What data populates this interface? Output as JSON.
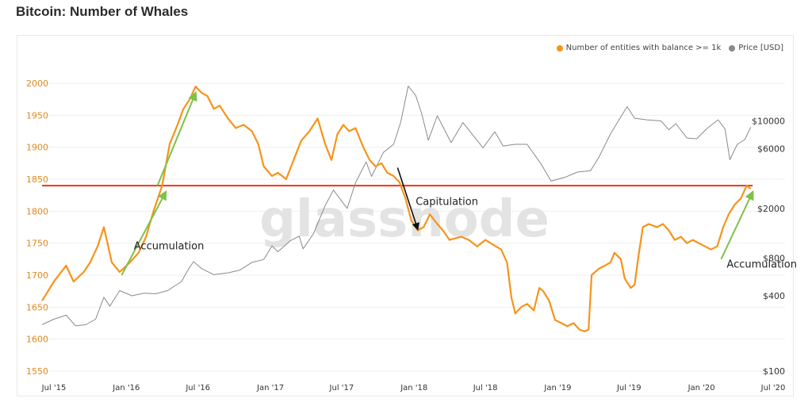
{
  "page": {
    "title": "Bitcoin: Number of Whales"
  },
  "chart_data": {
    "type": "line",
    "title": "Bitcoin: Number of Whales",
    "watermark": "glassnode",
    "legend_position": "top-right",
    "grid": true,
    "colors": {
      "whales": "#f7931a",
      "price": "#8a8a8a",
      "support_line": "#e8341c",
      "accumulation_arrow": "#7dc24b",
      "capitulation_arrow": "#111111"
    },
    "x_ticks": [
      "Jul '15",
      "Jan '16",
      "Jul '16",
      "Jan '17",
      "Jul '17",
      "Jan '18",
      "Jul '18",
      "Jan '19",
      "Jul '19",
      "Jan '20",
      "Jul '20"
    ],
    "y_left": {
      "ticks": [
        "2000",
        "1950",
        "1900",
        "1850",
        "1800",
        "1750",
        "1700",
        "1650",
        "1600",
        "1550"
      ],
      "range": [
        1550,
        2000
      ]
    },
    "y_right": {
      "scale": "log",
      "ticks": [
        "$10000",
        "$6000",
        "$2000",
        "$800",
        "$400",
        "$100"
      ],
      "range": [
        100,
        20000
      ]
    },
    "series": [
      {
        "name": "Number of entities with balance >= 1k",
        "axis": "left",
        "points": [
          [
            "2015-06-01",
            1660
          ],
          [
            "2015-07-01",
            1690
          ],
          [
            "2015-08-01",
            1715
          ],
          [
            "2015-08-20",
            1690
          ],
          [
            "2015-09-15",
            1705
          ],
          [
            "2015-10-01",
            1720
          ],
          [
            "2015-10-20",
            1745
          ],
          [
            "2015-11-05",
            1775
          ],
          [
            "2015-11-25",
            1720
          ],
          [
            "2015-12-15",
            1705
          ],
          [
            "2016-01-10",
            1720
          ],
          [
            "2016-02-01",
            1735
          ],
          [
            "2016-02-20",
            1760
          ],
          [
            "2016-03-10",
            1800
          ],
          [
            "2016-04-01",
            1840
          ],
          [
            "2016-04-20",
            1905
          ],
          [
            "2016-05-10",
            1935
          ],
          [
            "2016-05-25",
            1960
          ],
          [
            "2016-06-10",
            1975
          ],
          [
            "2016-06-25",
            1995
          ],
          [
            "2016-07-10",
            1985
          ],
          [
            "2016-07-25",
            1980
          ],
          [
            "2016-08-10",
            1960
          ],
          [
            "2016-08-25",
            1965
          ],
          [
            "2016-09-15",
            1945
          ],
          [
            "2016-10-05",
            1930
          ],
          [
            "2016-10-25",
            1935
          ],
          [
            "2016-11-15",
            1925
          ],
          [
            "2016-12-01",
            1905
          ],
          [
            "2016-12-15",
            1870
          ],
          [
            "2017-01-05",
            1855
          ],
          [
            "2017-01-20",
            1860
          ],
          [
            "2017-02-10",
            1850
          ],
          [
            "2017-03-01",
            1880
          ],
          [
            "2017-03-20",
            1910
          ],
          [
            "2017-04-10",
            1925
          ],
          [
            "2017-05-01",
            1945
          ],
          [
            "2017-05-20",
            1905
          ],
          [
            "2017-06-05",
            1880
          ],
          [
            "2017-06-20",
            1920
          ],
          [
            "2017-07-05",
            1935
          ],
          [
            "2017-07-20",
            1925
          ],
          [
            "2017-08-05",
            1930
          ],
          [
            "2017-08-25",
            1900
          ],
          [
            "2017-09-10",
            1880
          ],
          [
            "2017-09-25",
            1870
          ],
          [
            "2017-10-10",
            1875
          ],
          [
            "2017-10-25",
            1860
          ],
          [
            "2017-11-10",
            1855
          ],
          [
            "2017-11-25",
            1845
          ],
          [
            "2017-12-10",
            1820
          ],
          [
            "2017-12-25",
            1785
          ],
          [
            "2018-01-10",
            1770
          ],
          [
            "2018-01-25",
            1775
          ],
          [
            "2018-02-10",
            1795
          ],
          [
            "2018-03-01",
            1780
          ],
          [
            "2018-03-15",
            1770
          ],
          [
            "2018-04-01",
            1755
          ],
          [
            "2018-05-01",
            1760
          ],
          [
            "2018-05-20",
            1755
          ],
          [
            "2018-06-10",
            1745
          ],
          [
            "2018-07-01",
            1755
          ],
          [
            "2018-07-20",
            1748
          ],
          [
            "2018-08-10",
            1740
          ],
          [
            "2018-08-25",
            1720
          ],
          [
            "2018-09-05",
            1665
          ],
          [
            "2018-09-15",
            1640
          ],
          [
            "2018-09-30",
            1650
          ],
          [
            "2018-10-15",
            1655
          ],
          [
            "2018-11-01",
            1645
          ],
          [
            "2018-11-15",
            1680
          ],
          [
            "2018-11-25",
            1675
          ],
          [
            "2018-12-10",
            1660
          ],
          [
            "2018-12-25",
            1630
          ],
          [
            "2019-01-10",
            1625
          ],
          [
            "2019-01-25",
            1620
          ],
          [
            "2019-02-10",
            1625
          ],
          [
            "2019-02-25",
            1615
          ],
          [
            "2019-03-10",
            1612
          ],
          [
            "2019-03-20",
            1615
          ],
          [
            "2019-03-28",
            1700
          ],
          [
            "2019-04-15",
            1710
          ],
          [
            "2019-05-01",
            1715
          ],
          [
            "2019-05-15",
            1720
          ],
          [
            "2019-05-25",
            1735
          ],
          [
            "2019-06-10",
            1725
          ],
          [
            "2019-06-20",
            1695
          ],
          [
            "2019-07-05",
            1680
          ],
          [
            "2019-07-15",
            1685
          ],
          [
            "2019-07-25",
            1730
          ],
          [
            "2019-08-05",
            1775
          ],
          [
            "2019-08-20",
            1780
          ],
          [
            "2019-09-10",
            1775
          ],
          [
            "2019-09-25",
            1780
          ],
          [
            "2019-10-10",
            1770
          ],
          [
            "2019-10-25",
            1755
          ],
          [
            "2019-11-10",
            1760
          ],
          [
            "2019-11-25",
            1750
          ],
          [
            "2019-12-10",
            1755
          ],
          [
            "2019-12-25",
            1750
          ],
          [
            "2020-01-10",
            1745
          ],
          [
            "2020-01-25",
            1740
          ],
          [
            "2020-02-10",
            1745
          ],
          [
            "2020-02-25",
            1775
          ],
          [
            "2020-03-10",
            1795
          ],
          [
            "2020-03-25",
            1810
          ],
          [
            "2020-04-10",
            1820
          ],
          [
            "2020-04-25",
            1840
          ],
          [
            "2020-05-05",
            1835
          ]
        ]
      },
      {
        "name": "Price [USD]",
        "axis": "right",
        "points": [
          [
            "2015-06-01",
            235
          ],
          [
            "2015-07-01",
            260
          ],
          [
            "2015-08-01",
            280
          ],
          [
            "2015-08-25",
            230
          ],
          [
            "2015-09-20",
            235
          ],
          [
            "2015-10-15",
            260
          ],
          [
            "2015-11-05",
            390
          ],
          [
            "2015-11-20",
            330
          ],
          [
            "2015-12-15",
            440
          ],
          [
            "2016-01-15",
            400
          ],
          [
            "2016-02-15",
            420
          ],
          [
            "2016-03-15",
            415
          ],
          [
            "2016-04-15",
            440
          ],
          [
            "2016-05-20",
            520
          ],
          [
            "2016-06-10",
            680
          ],
          [
            "2016-06-20",
            750
          ],
          [
            "2016-07-10",
            660
          ],
          [
            "2016-08-10",
            590
          ],
          [
            "2016-09-15",
            610
          ],
          [
            "2016-10-15",
            640
          ],
          [
            "2016-11-15",
            740
          ],
          [
            "2016-12-15",
            780
          ],
          [
            "2017-01-05",
            1000
          ],
          [
            "2017-01-20",
            900
          ],
          [
            "2017-02-20",
            1100
          ],
          [
            "2017-03-15",
            1200
          ],
          [
            "2017-03-25",
            950
          ],
          [
            "2017-04-20",
            1250
          ],
          [
            "2017-05-20",
            2100
          ],
          [
            "2017-06-10",
            2800
          ],
          [
            "2017-07-15",
            2000
          ],
          [
            "2017-08-05",
            3200
          ],
          [
            "2017-09-01",
            4700
          ],
          [
            "2017-09-15",
            3600
          ],
          [
            "2017-10-15",
            5600
          ],
          [
            "2017-11-10",
            6500
          ],
          [
            "2017-11-28",
            9800
          ],
          [
            "2017-12-17",
            19000
          ],
          [
            "2018-01-05",
            16000
          ],
          [
            "2018-01-20",
            11500
          ],
          [
            "2018-02-06",
            7000
          ],
          [
            "2018-03-01",
            11000
          ],
          [
            "2018-04-05",
            6700
          ],
          [
            "2018-05-05",
            9700
          ],
          [
            "2018-06-25",
            6100
          ],
          [
            "2018-07-25",
            8200
          ],
          [
            "2018-08-15",
            6300
          ],
          [
            "2018-09-15",
            6500
          ],
          [
            "2018-10-15",
            6500
          ],
          [
            "2018-11-20",
            4500
          ],
          [
            "2018-12-15",
            3300
          ],
          [
            "2019-01-20",
            3550
          ],
          [
            "2019-02-20",
            3900
          ],
          [
            "2019-03-25",
            4000
          ],
          [
            "2019-04-15",
            5100
          ],
          [
            "2019-05-15",
            7900
          ],
          [
            "2019-06-26",
            13000
          ],
          [
            "2019-07-15",
            10500
          ],
          [
            "2019-08-15",
            10200
          ],
          [
            "2019-09-20",
            10000
          ],
          [
            "2019-10-10",
            8500
          ],
          [
            "2019-10-28",
            9500
          ],
          [
            "2019-11-25",
            7300
          ],
          [
            "2019-12-20",
            7200
          ],
          [
            "2020-01-15",
            8700
          ],
          [
            "2020-02-12",
            10200
          ],
          [
            "2020-03-01",
            8600
          ],
          [
            "2020-03-13",
            4900
          ],
          [
            "2020-04-01",
            6500
          ],
          [
            "2020-04-20",
            7100
          ],
          [
            "2020-05-05",
            8900
          ]
        ]
      }
    ],
    "reference_line": {
      "value": 1840,
      "axis": "left",
      "from": "2015-06-01",
      "to": "2020-05-10"
    },
    "annotations": [
      {
        "text": "Accumulation",
        "kind": "accumulation",
        "x": "2016-01-20",
        "y": 1740,
        "arrow_from": [
          "2015-12-20",
          1700
        ],
        "arrow_to": [
          "2016-04-10",
          1830
        ]
      },
      {
        "text": "Accumulation",
        "kind": "accumulation",
        "x": "2020-03-05",
        "y": 1712,
        "arrow_from": [
          "2020-02-20",
          1725
        ],
        "arrow_to": [
          "2020-05-10",
          1830
        ]
      },
      {
        "text": "Capitulation",
        "kind": "capitulation",
        "x": "2018-01-05",
        "y": 1810,
        "arrow_from": [
          "2017-11-20",
          1868
        ],
        "arrow_to": [
          "2018-01-10",
          1772
        ]
      },
      {
        "text": "",
        "kind": "accumulation",
        "x": "",
        "y": 0,
        "arrow_from": [
          "2016-03-20",
          1840
        ],
        "arrow_to": [
          "2016-06-25",
          1985
        ]
      }
    ]
  }
}
